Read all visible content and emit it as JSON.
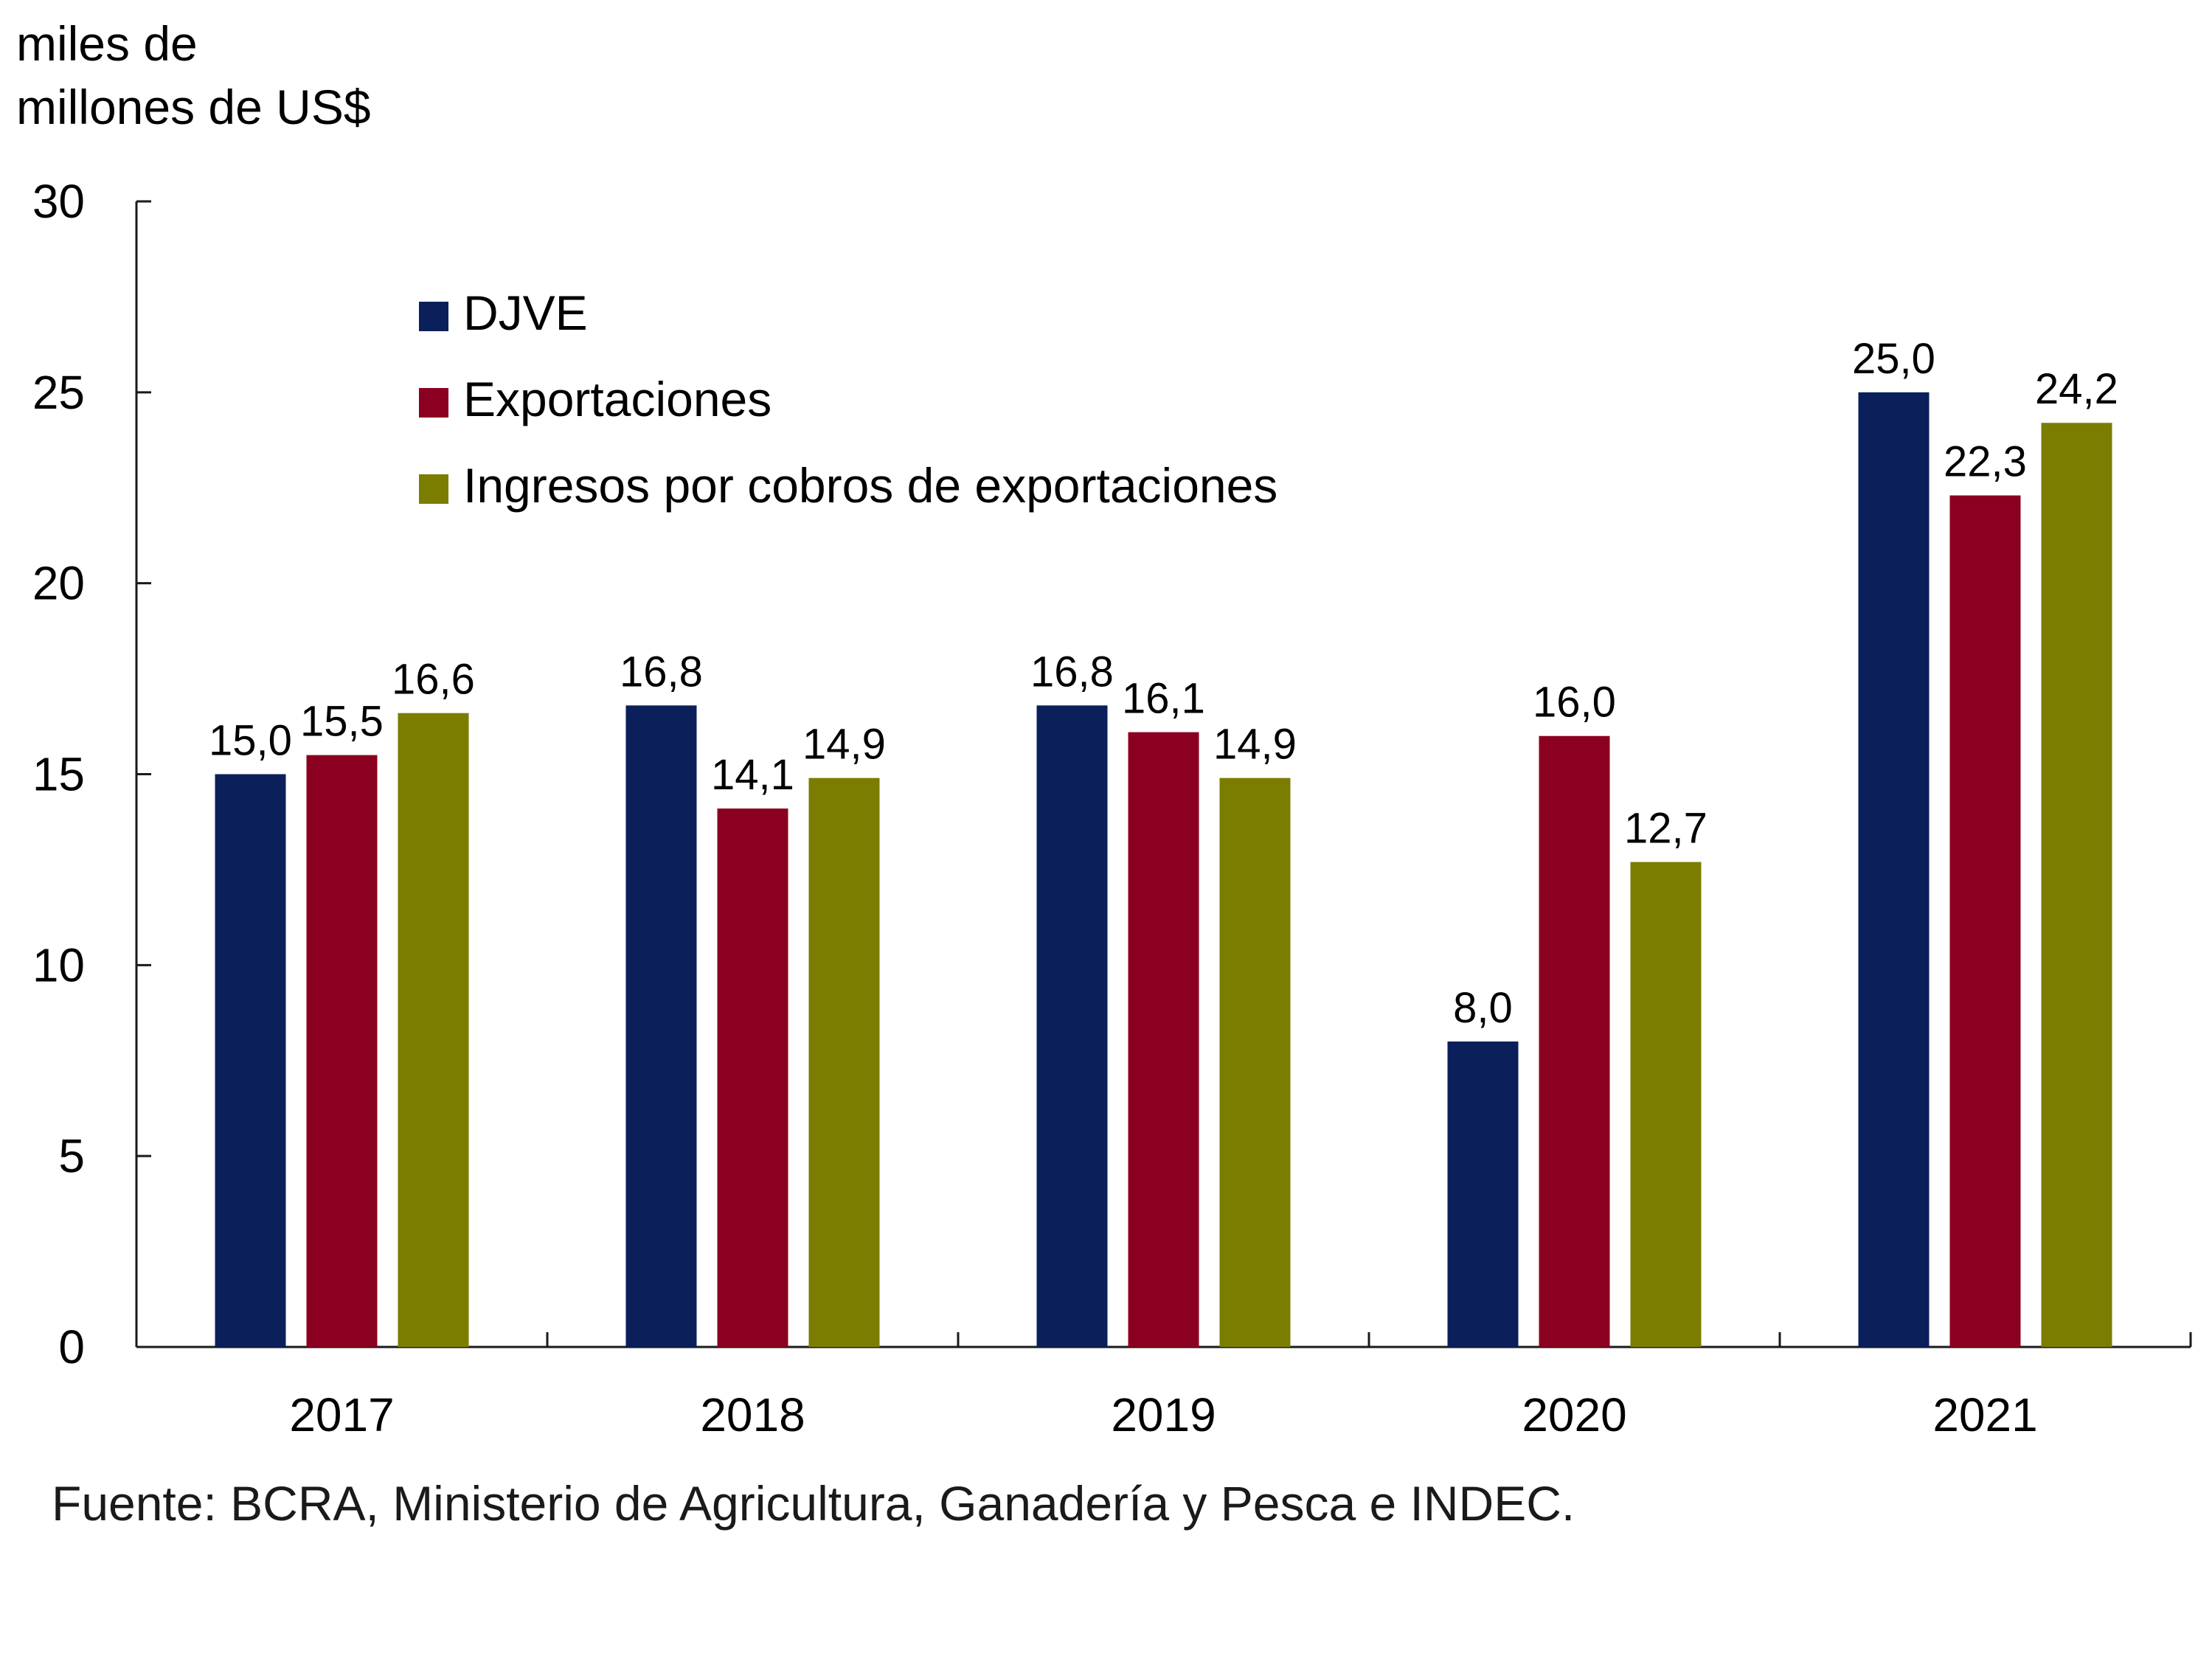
{
  "chart_data": {
    "type": "bar",
    "ylabel_lines": [
      "miles de",
      "millones de US$"
    ],
    "categories": [
      "2017",
      "2018",
      "2019",
      "2020",
      "2021"
    ],
    "series": [
      {
        "name": "DJVE",
        "color": "#0b1f5a",
        "values": [
          15.0,
          16.8,
          16.8,
          8.0,
          25.0
        ],
        "labels": [
          "15,0",
          "16,8",
          "16,8",
          "8,0",
          "25,0"
        ]
      },
      {
        "name": "Exportaciones",
        "color": "#8b0020",
        "values": [
          15.5,
          14.1,
          16.1,
          16.0,
          22.3
        ],
        "labels": [
          "15,5",
          "14,1",
          "16,1",
          "16,0",
          "22,3"
        ]
      },
      {
        "name": "Ingresos por cobros de exportaciones",
        "color": "#7a7d00",
        "values": [
          16.6,
          14.9,
          14.9,
          12.7,
          24.2
        ],
        "labels": [
          "16,6",
          "14,9",
          "14,9",
          "12,7",
          "24,2"
        ]
      }
    ],
    "ylim": [
      0,
      30
    ],
    "yticks": [
      "0",
      "5",
      "10",
      "15",
      "20",
      "25",
      "30"
    ],
    "legend_position": "top-left",
    "grid": false
  },
  "source": "Fuente: BCRA, Ministerio de Agricultura, Ganadería y Pesca e INDEC."
}
